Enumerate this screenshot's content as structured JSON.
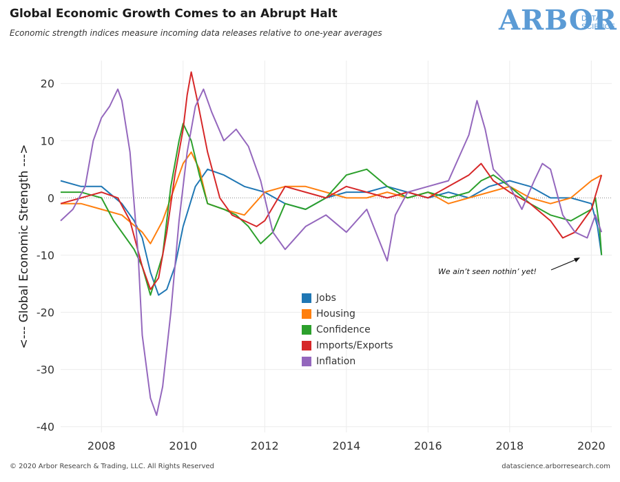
{
  "header": {
    "title": "Global Economic Growth Comes to an Abrupt Halt",
    "subtitle": "Economic strength indices measure incoming data releases relative to one-year averages"
  },
  "logo": {
    "word": "ARBOR",
    "sub_line1": "DATA",
    "sub_line2": "SCIENCE",
    "color": "#5b9bd5"
  },
  "footer": {
    "copyright": "© 2020 Arbor Research & Trading, LLC. All Rights Reserved",
    "url": "datascience.arborresearch.com"
  },
  "chart_data": {
    "type": "line",
    "title": "Global Economic Growth Comes to an Abrupt Halt",
    "ylabel": "<--- Global Economic Strength --->",
    "xlabel": "",
    "xlim": [
      2007,
      2020.5
    ],
    "ylim": [
      -41,
      24
    ],
    "xticks": [
      2008,
      2010,
      2012,
      2014,
      2016,
      2018,
      2020
    ],
    "yticks": [
      20,
      10,
      0,
      -10,
      -20,
      -30,
      -40
    ],
    "grid": true,
    "zero_line": "dotted",
    "legend_position": "center-bottom",
    "annotation": {
      "text": "We ain’t seen nothin’ yet!",
      "x": 2020.3,
      "y": -10
    },
    "series": [
      {
        "name": "Jobs",
        "color": "#1f77b4",
        "x": [
          2007.0,
          2007.5,
          2008.0,
          2008.5,
          2008.8,
          2009.0,
          2009.2,
          2009.4,
          2009.6,
          2009.8,
          2010.0,
          2010.3,
          2010.6,
          2011.0,
          2011.5,
          2012.0,
          2012.5,
          2013.0,
          2013.5,
          2014.0,
          2014.5,
          2015.0,
          2015.5,
          2016.0,
          2016.5,
          2017.0,
          2017.5,
          2018.0,
          2018.5,
          2019.0,
          2019.5,
          2020.0,
          2020.15,
          2020.25
        ],
        "y": [
          3,
          2,
          2,
          -1,
          -4,
          -7,
          -13,
          -17,
          -16,
          -12,
          -5,
          2,
          5,
          4,
          2,
          1,
          -1,
          -2,
          0,
          1,
          1,
          2,
          1,
          0,
          1,
          0,
          2,
          3,
          2,
          0,
          0,
          -1,
          -5,
          -10
        ]
      },
      {
        "name": "Housing",
        "color": "#ff7f0e",
        "x": [
          2007.0,
          2007.5,
          2008.0,
          2008.5,
          2009.0,
          2009.2,
          2009.5,
          2009.8,
          2010.0,
          2010.2,
          2010.4,
          2010.6,
          2011.0,
          2011.5,
          2012.0,
          2012.5,
          2013.0,
          2013.5,
          2014.0,
          2014.5,
          2015.0,
          2015.5,
          2016.0,
          2016.5,
          2017.0,
          2017.5,
          2018.0,
          2018.5,
          2019.0,
          2019.5,
          2020.0,
          2020.25
        ],
        "y": [
          -1,
          -1,
          -2,
          -3,
          -6,
          -8,
          -4,
          2,
          6,
          8,
          5,
          -1,
          -2,
          -3,
          1,
          2,
          2,
          1,
          0,
          0,
          1,
          0,
          1,
          -1,
          0,
          1,
          2,
          0,
          -1,
          0,
          3,
          4
        ]
      },
      {
        "name": "Confidence",
        "color": "#2ca02c",
        "x": [
          2007.0,
          2007.5,
          2008.0,
          2008.3,
          2008.6,
          2008.8,
          2009.0,
          2009.2,
          2009.5,
          2009.7,
          2009.9,
          2010.0,
          2010.2,
          2010.4,
          2010.6,
          2011.0,
          2011.3,
          2011.6,
          2011.9,
          2012.2,
          2012.5,
          2013.0,
          2013.5,
          2014.0,
          2014.5,
          2015.0,
          2015.5,
          2016.0,
          2016.5,
          2017.0,
          2017.3,
          2017.6,
          2018.0,
          2018.5,
          2019.0,
          2019.5,
          2020.0,
          2020.1,
          2020.2,
          2020.25
        ],
        "y": [
          1,
          1,
          0,
          -4,
          -7,
          -9,
          -12,
          -17,
          -10,
          2,
          10,
          13,
          10,
          4,
          -1,
          -2,
          -3,
          -5,
          -8,
          -6,
          -1,
          -2,
          0,
          4,
          5,
          2,
          0,
          1,
          0,
          1,
          3,
          4,
          2,
          -1,
          -3,
          -4,
          -2,
          0,
          -5,
          -10
        ]
      },
      {
        "name": "Imports/Exports",
        "color": "#d62728",
        "x": [
          2007.0,
          2007.5,
          2008.0,
          2008.4,
          2008.7,
          2009.0,
          2009.2,
          2009.4,
          2009.6,
          2009.8,
          2010.0,
          2010.1,
          2010.2,
          2010.35,
          2010.6,
          2010.9,
          2011.2,
          2011.5,
          2011.8,
          2012.0,
          2012.5,
          2013.0,
          2013.5,
          2014.0,
          2014.5,
          2015.0,
          2015.5,
          2016.0,
          2016.5,
          2017.0,
          2017.3,
          2017.6,
          2018.0,
          2018.5,
          2019.0,
          2019.3,
          2019.6,
          2020.0,
          2020.25
        ],
        "y": [
          -1,
          0,
          1,
          0,
          -4,
          -12,
          -16,
          -14,
          -6,
          4,
          12,
          18,
          22,
          17,
          8,
          0,
          -3,
          -4,
          -5,
          -4,
          2,
          1,
          0,
          2,
          1,
          0,
          1,
          0,
          2,
          4,
          6,
          3,
          1,
          -1,
          -4,
          -7,
          -6,
          -2,
          4
        ]
      },
      {
        "name": "Inflation",
        "color": "#9467bd",
        "x": [
          2007.0,
          2007.3,
          2007.6,
          2007.8,
          2008.0,
          2008.2,
          2008.4,
          2008.5,
          2008.7,
          2008.9,
          2009.0,
          2009.2,
          2009.35,
          2009.5,
          2009.7,
          2009.9,
          2010.1,
          2010.3,
          2010.5,
          2010.7,
          2011.0,
          2011.3,
          2011.6,
          2011.9,
          2012.2,
          2012.5,
          2013.0,
          2013.5,
          2014.0,
          2014.5,
          2015.0,
          2015.2,
          2015.5,
          2016.0,
          2016.5,
          2017.0,
          2017.2,
          2017.4,
          2017.6,
          2018.0,
          2018.3,
          2018.6,
          2018.8,
          2019.0,
          2019.3,
          2019.6,
          2019.9,
          2020.1,
          2020.25
        ],
        "y": [
          -4,
          -2,
          2,
          10,
          14,
          16,
          19,
          17,
          8,
          -10,
          -24,
          -35,
          -38,
          -33,
          -20,
          -4,
          8,
          16,
          19,
          15,
          10,
          12,
          9,
          3,
          -6,
          -9,
          -5,
          -3,
          -6,
          -2,
          -11,
          -3,
          1,
          2,
          3,
          11,
          17,
          12,
          5,
          2,
          -2,
          3,
          6,
          5,
          -3,
          -6,
          -7,
          -3,
          -6
        ]
      }
    ]
  }
}
